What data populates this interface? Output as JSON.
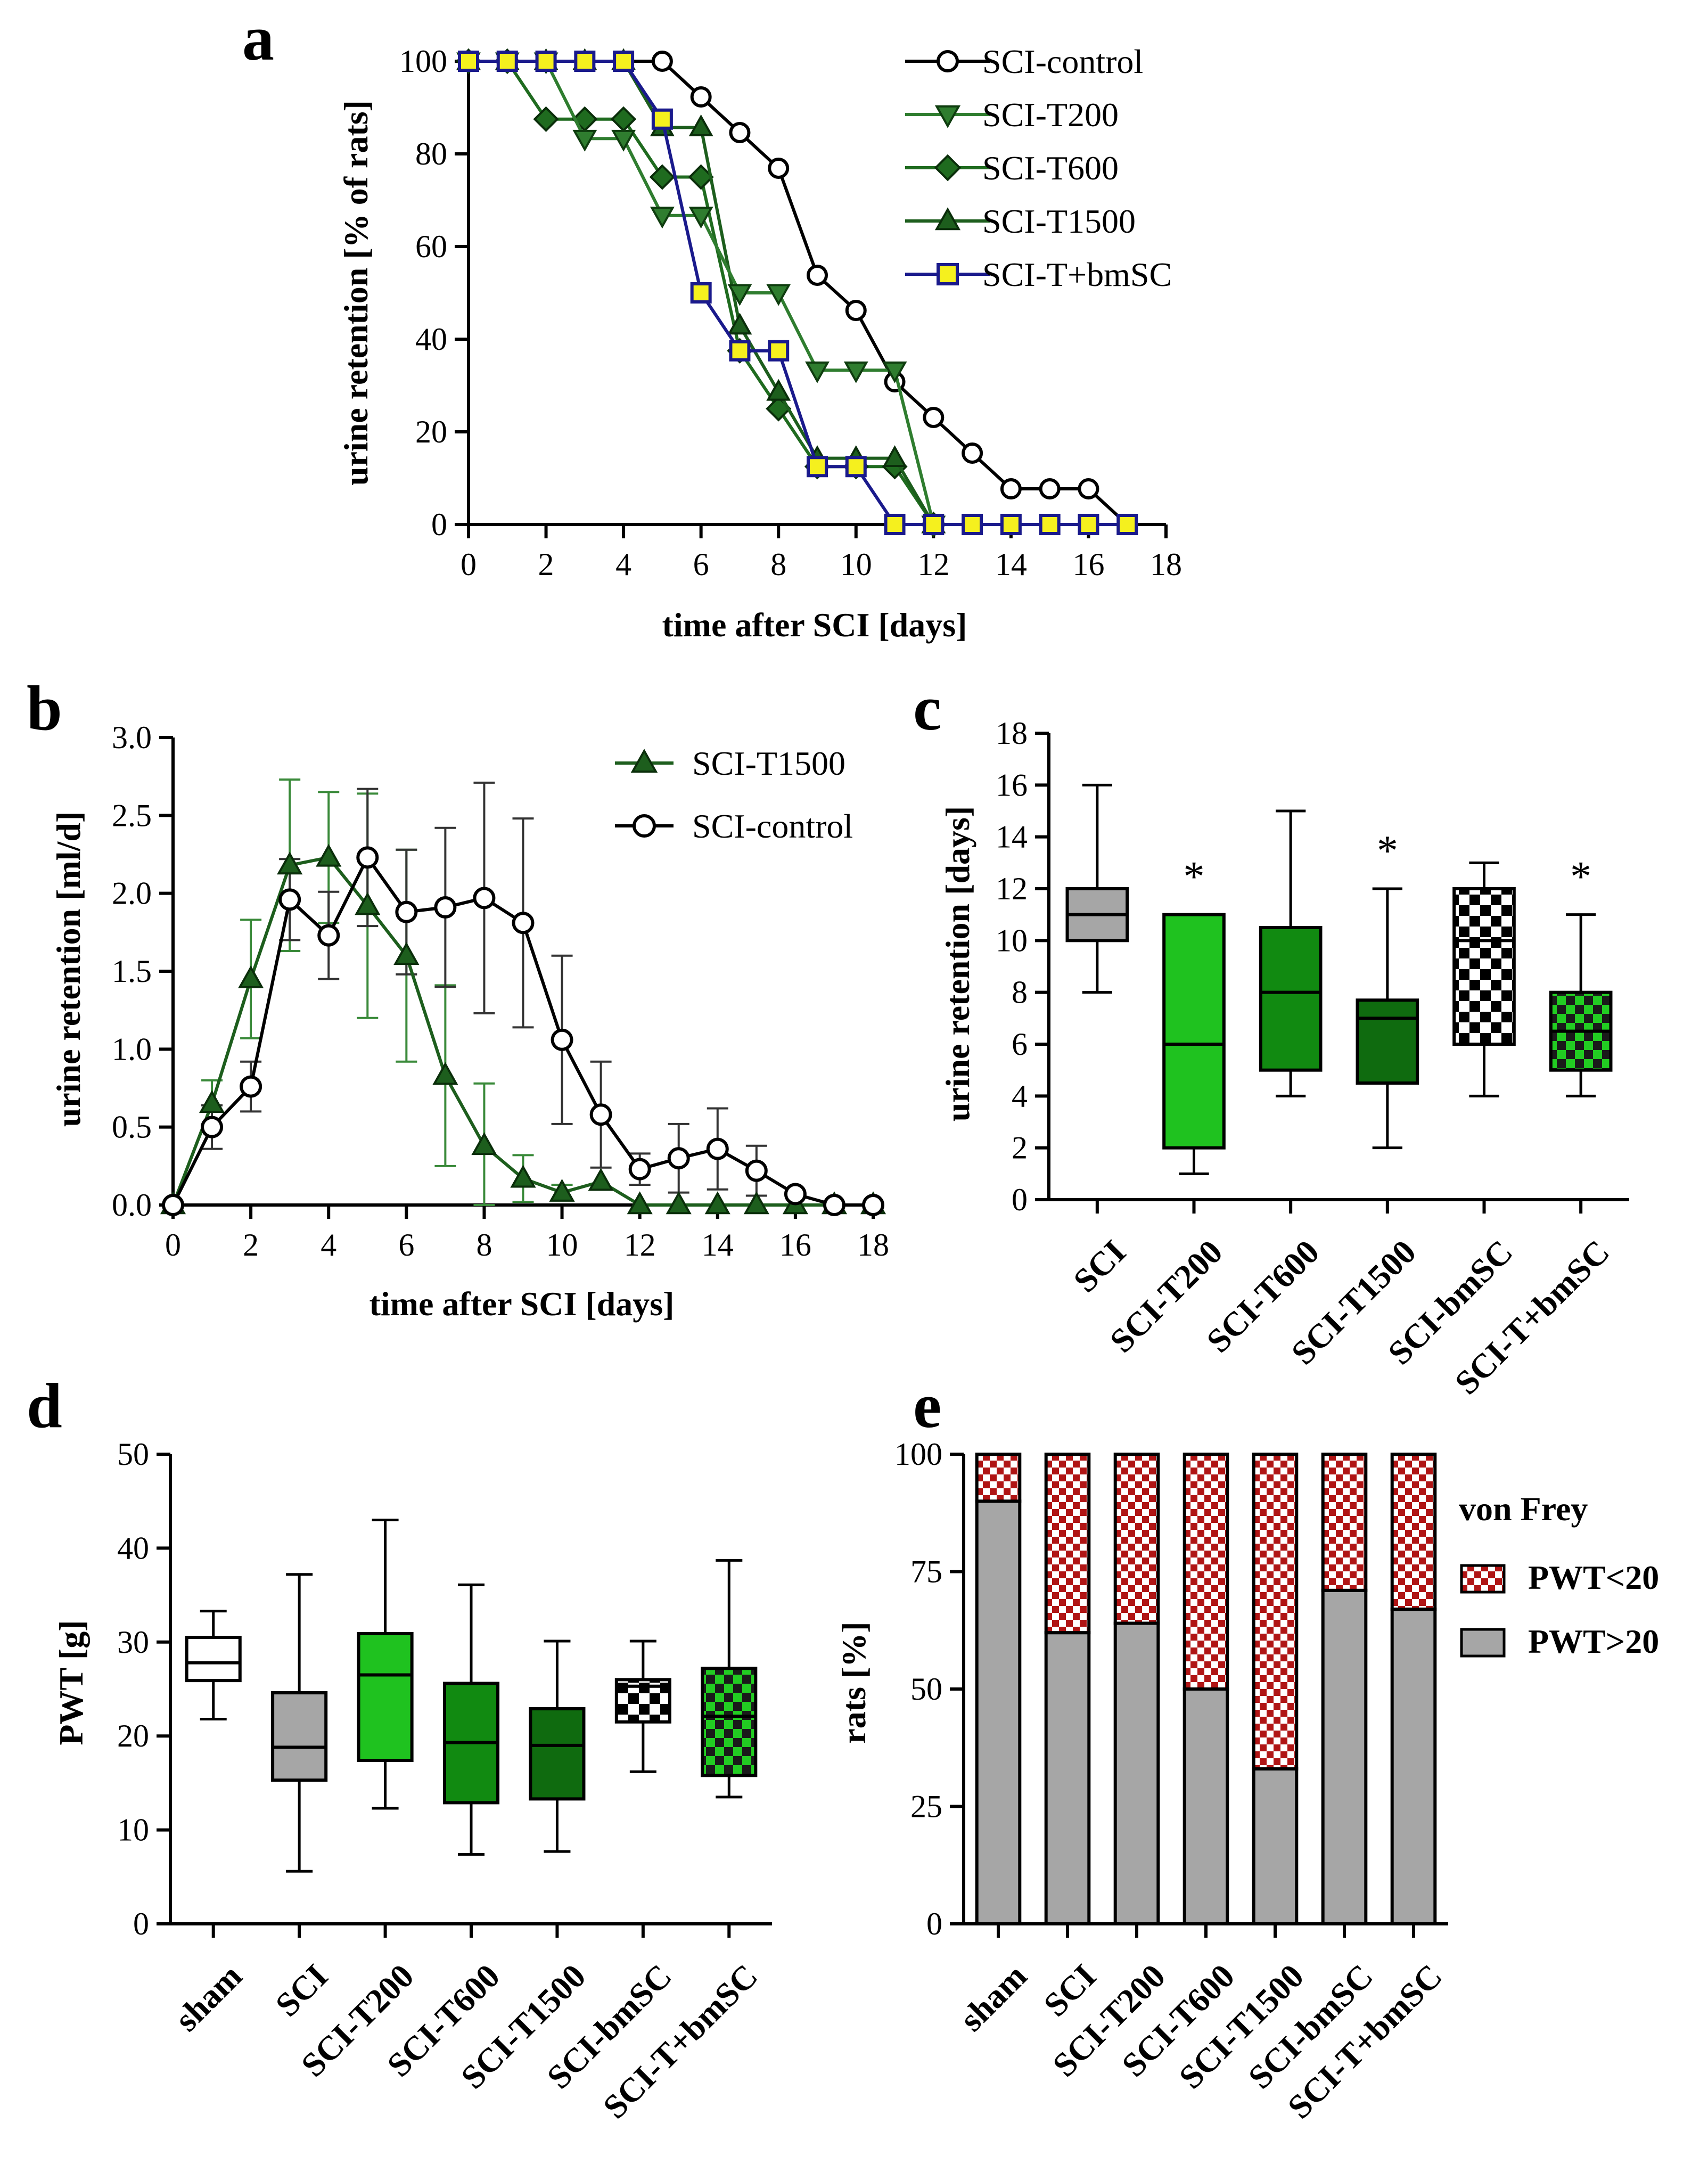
{
  "panels": {
    "a": {
      "letter": "a"
    },
    "b": {
      "letter": "b"
    },
    "c": {
      "letter": "c"
    },
    "d": {
      "letter": "d"
    },
    "e": {
      "letter": "e"
    }
  },
  "colors": {
    "control_fill": "#ffffff",
    "t200": "#2f7d2f",
    "t600": "#1f6b1f",
    "t1500": "#1d5e1d",
    "bmsc_line": "#1a1a8c",
    "bmsc_fill": "#f5f01e",
    "sci_box": "#a6a6a6",
    "t200_box": "#1fc21f",
    "t600_box": "#118a11",
    "t1500_box": "#0f6b0f",
    "check_green": "#22cc22",
    "red_check": "#b01515"
  },
  "chart_data": [
    {
      "id": "a",
      "type": "line",
      "title": "",
      "xlabel": "time after SCI [days]",
      "ylabel": "urine retention [% of rats]",
      "xlim": [
        0,
        18
      ],
      "ylim": [
        0,
        100
      ],
      "xticks": [
        "0",
        "2",
        "4",
        "6",
        "8",
        "10",
        "12",
        "14",
        "16",
        "18"
      ],
      "yticks": [
        "0",
        "20",
        "40",
        "60",
        "80",
        "100"
      ],
      "series": [
        {
          "name": "SCI-control",
          "marker": "circle",
          "x": [
            0,
            1,
            2,
            3,
            4,
            5,
            6,
            7,
            8,
            9,
            10,
            11,
            12,
            13,
            14,
            15,
            16,
            17
          ],
          "y": [
            100,
            100,
            100,
            100,
            100,
            100,
            92.3,
            84.6,
            76.9,
            53.8,
            46.2,
            30.8,
            23.1,
            15.4,
            7.7,
            7.7,
            7.7,
            0
          ]
        },
        {
          "name": "SCI-T200",
          "marker": "triangle-down",
          "x": [
            0,
            1,
            2,
            3,
            4,
            5,
            6,
            7,
            8,
            9,
            10,
            11,
            12
          ],
          "y": [
            100,
            100,
            100,
            83.3,
            83.3,
            66.7,
            66.7,
            50,
            50,
            33.3,
            33.3,
            33.3,
            0
          ]
        },
        {
          "name": "SCI-T600",
          "marker": "diamond",
          "x": [
            0,
            1,
            2,
            3,
            4,
            5,
            6,
            7,
            8,
            9,
            10,
            11,
            12
          ],
          "y": [
            100,
            100,
            87.5,
            87.5,
            87.5,
            75,
            75,
            37.5,
            25,
            12.5,
            12.5,
            12.5,
            0
          ]
        },
        {
          "name": "SCI-T1500",
          "marker": "triangle-up",
          "x": [
            0,
            1,
            2,
            3,
            4,
            5,
            6,
            7,
            8,
            9,
            10,
            11,
            12
          ],
          "y": [
            100,
            100,
            100,
            100,
            100,
            85.7,
            85.7,
            42.9,
            28.6,
            14.3,
            14.3,
            14.3,
            0
          ]
        },
        {
          "name": "SCI-T+bmSC",
          "marker": "square",
          "x": [
            0,
            1,
            2,
            3,
            4,
            5,
            6,
            7,
            8,
            9,
            10,
            11,
            12,
            13,
            14,
            15,
            16,
            17
          ],
          "y": [
            100,
            100,
            100,
            100,
            100,
            87.5,
            50,
            37.5,
            37.5,
            12.5,
            12.5,
            0,
            0,
            0,
            0,
            0,
            0,
            0
          ]
        }
      ],
      "legend": [
        "SCI-control",
        "SCI-T200",
        "SCI-T600",
        "SCI-T1500",
        "SCI-T+bmSC"
      ]
    },
    {
      "id": "b",
      "type": "line",
      "title": "",
      "xlabel": "time after SCI [days]",
      "ylabel": "urine retention [ml/d]",
      "xlim": [
        0,
        18
      ],
      "ylim": [
        0,
        3.0
      ],
      "xticks": [
        "0",
        "2",
        "4",
        "6",
        "8",
        "10",
        "12",
        "14",
        "16",
        "18"
      ],
      "yticks": [
        "0.0",
        "0.5",
        "1.0",
        "1.5",
        "2.0",
        "2.5",
        "3.0"
      ],
      "series": [
        {
          "name": "SCI-T1500",
          "marker": "triangle-up",
          "x": [
            0,
            1,
            2,
            3,
            4,
            5,
            6,
            7,
            8,
            9,
            10,
            11,
            12,
            13,
            14,
            15,
            16,
            17,
            18
          ],
          "y": [
            0,
            0.65,
            1.45,
            2.18,
            2.23,
            1.92,
            1.6,
            0.83,
            0.38,
            0.17,
            0.08,
            0.15,
            0,
            0,
            0,
            0,
            0,
            0,
            0
          ],
          "err": [
            0,
            0.15,
            0.38,
            0.55,
            0.42,
            0.72,
            0.68,
            0.58,
            0.4,
            0.15,
            0.05,
            0,
            0,
            0,
            0,
            0,
            0,
            0,
            0
          ]
        },
        {
          "name": "SCI-control",
          "marker": "circle",
          "x": [
            0,
            1,
            2,
            3,
            4,
            5,
            6,
            7,
            8,
            9,
            10,
            11,
            12,
            13,
            14,
            15,
            16,
            17,
            18
          ],
          "y": [
            0,
            0.5,
            0.76,
            1.96,
            1.73,
            2.23,
            1.88,
            1.91,
            1.97,
            1.81,
            1.06,
            0.58,
            0.23,
            0.3,
            0.36,
            0.22,
            0.07,
            0,
            0
          ],
          "err": [
            0,
            0.14,
            0.16,
            0.26,
            0.28,
            0.44,
            0.4,
            0.51,
            0.74,
            0.67,
            0.54,
            0.34,
            0.1,
            0.22,
            0.26,
            0.16,
            0,
            0,
            0
          ]
        }
      ],
      "legend": [
        "SCI-T1500",
        "SCI-control"
      ]
    },
    {
      "id": "c",
      "type": "box",
      "title": "",
      "xlabel": "",
      "ylabel": "urine retention [days]",
      "ylim": [
        0,
        18
      ],
      "yticks": [
        "0",
        "2",
        "4",
        "6",
        "8",
        "10",
        "12",
        "14",
        "16",
        "18"
      ],
      "categories": [
        "SCI",
        "SCI-T200",
        "SCI-T600",
        "SCI-T1500",
        "SCI-bmSC",
        "SCI-T+bmSC"
      ],
      "boxes": [
        {
          "min": 8,
          "q1": 10,
          "median": 11,
          "q3": 12,
          "max": 16,
          "sig": ""
        },
        {
          "min": 1,
          "q1": 2,
          "median": 6,
          "q3": 11,
          "max": 11,
          "sig": "*"
        },
        {
          "min": 4,
          "q1": 5,
          "median": 8,
          "q3": 10.5,
          "max": 15,
          "sig": ""
        },
        {
          "min": 2,
          "q1": 4.5,
          "median": 7,
          "q3": 7.7,
          "max": 12,
          "sig": "*"
        },
        {
          "min": 4,
          "q1": 6,
          "median": 10,
          "q3": 12,
          "max": 13,
          "sig": ""
        },
        {
          "min": 4,
          "q1": 5,
          "median": 6.5,
          "q3": 8,
          "max": 11,
          "sig": "*"
        }
      ]
    },
    {
      "id": "d",
      "type": "box",
      "title": "",
      "xlabel": "",
      "ylabel": "PWT [g]",
      "ylim": [
        0,
        50
      ],
      "yticks": [
        "0",
        "10",
        "20",
        "30",
        "40",
        "50"
      ],
      "categories": [
        "sham",
        "SCI",
        "SCI-T200",
        "SCI-T600",
        "SCI-T1500",
        "SCI-bmSC",
        "SCI-T+bmSC"
      ],
      "boxes": [
        {
          "min": 21.8,
          "q1": 25.9,
          "median": 27.8,
          "q3": 30.5,
          "max": 33.3
        },
        {
          "min": 5.6,
          "q1": 15.3,
          "median": 18.8,
          "q3": 24.6,
          "max": 37.2
        },
        {
          "min": 12.3,
          "q1": 17.4,
          "median": 26.5,
          "q3": 30.9,
          "max": 43.0
        },
        {
          "min": 7.4,
          "q1": 12.9,
          "median": 19.3,
          "q3": 25.6,
          "max": 36.1
        },
        {
          "min": 7.7,
          "q1": 13.3,
          "median": 19.0,
          "q3": 22.9,
          "max": 30.1
        },
        {
          "min": 16.2,
          "q1": 21.5,
          "median": 25.3,
          "q3": 26.0,
          "max": 30.1
        },
        {
          "min": 13.5,
          "q1": 15.8,
          "median": 22.1,
          "q3": 27.2,
          "max": 38.7
        }
      ]
    },
    {
      "id": "e",
      "type": "bar",
      "stacked": true,
      "title": "",
      "xlabel": "",
      "ylabel": "rats [%]",
      "ylim": [
        0,
        100
      ],
      "yticks": [
        "0",
        "25",
        "50",
        "75",
        "100"
      ],
      "categories": [
        "sham",
        "SCI",
        "SCI-T200",
        "SCI-T600",
        "SCI-T1500",
        "SCI-bmSC",
        "SCI-T+bmSC"
      ],
      "legend_title": "von Frey",
      "series": [
        {
          "name": "PWT>20",
          "values": [
            90,
            62,
            64,
            50,
            33,
            71,
            67
          ]
        },
        {
          "name": "PWT<20",
          "values": [
            10,
            38,
            36,
            50,
            67,
            29,
            33
          ]
        }
      ],
      "legend": [
        "PWT<20",
        "PWT>20"
      ]
    }
  ]
}
